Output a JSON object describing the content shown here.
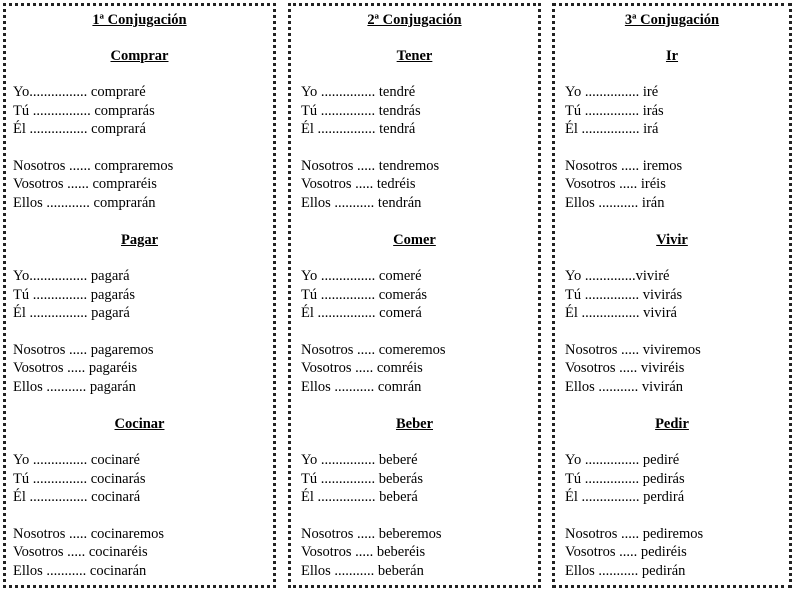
{
  "columns": [
    {
      "title": "1ª Conjugación",
      "verbs": [
        {
          "name": "Comprar",
          "forms": [
            "Yo................ compraré",
            "Tú ................ comprarás",
            "Él ................ comprará",
            "Nosotros ...... compraremos",
            "Vosotros ...... compraréis",
            "Ellos ............ comprarán"
          ]
        },
        {
          "name": "Pagar",
          "forms": [
            "Yo................ pagará",
            "Tú  ............... pagarás",
            "Él  ................ pagará",
            "Nosotros  ..... pagaremos",
            "Vosotros  ..... pagaréis",
            "Ellos  ........... pagarán"
          ]
        },
        {
          "name": "Cocinar",
          "forms": [
            "Yo ............... cocinaré",
            "Tú  ............... cocinarás",
            "Él  ................ cocinará",
            "Nosotros  ..... cocinaremos",
            "Vosotros  ..... cocinaréis",
            "Ellos  ........... cocinarán"
          ]
        }
      ]
    },
    {
      "title": "2ª Conjugación",
      "verbs": [
        {
          "name": "Tener",
          "forms": [
            " Yo ............... tendré",
            "Tú  ............... tendrás",
            "Él  ................ tendrá",
            "Nosotros  ..... tendremos",
            "Vosotros  ..... tedréis",
            "Ellos  ........... tendrán"
          ]
        },
        {
          "name": "Comer",
          "forms": [
            " Yo ............... comeré",
            "Tú  ............... comerás",
            "Él  ................ comerá",
            "Nosotros  ..... comeremos",
            "Vosotros  ..... comréis",
            "Ellos  ........... comrán"
          ]
        },
        {
          "name": "Beber",
          "forms": [
            " Yo ............... beberé",
            "Tú  ............... beberás",
            "Él  ................ beberá",
            "Nosotros  ..... beberemos",
            "Vosotros  ..... beberéis",
            "Ellos  ........... beberán"
          ]
        }
      ]
    },
    {
      "title": "3ª Conjugación",
      "verbs": [
        {
          "name": "Ir",
          "forms": [
            " Yo ............... iré",
            "Tú  ............... irás",
            "Él  ................ irá",
            "Nosotros  ..... iremos",
            "Vosotros  ..... iréis",
            "Ellos  ........... irán"
          ]
        },
        {
          "name": "Vivir",
          "forms": [
            " Yo ..............viviré",
            "Tú  ............... vivirás",
            "Él  ................ vivirá",
            "Nosotros  ..... viviremos",
            "Vosotros  ..... viviréis",
            "Ellos  ........... vivirán"
          ]
        },
        {
          "name": "Pedir",
          "forms": [
            " Yo ............... pediré",
            "Tú  ............... pedirás",
            "Él  ................ perdirá",
            "Nosotros  ..... pediremos",
            "Vosotros  ..... pediréis",
            "Ellos  ........... pedirán"
          ]
        }
      ]
    }
  ]
}
